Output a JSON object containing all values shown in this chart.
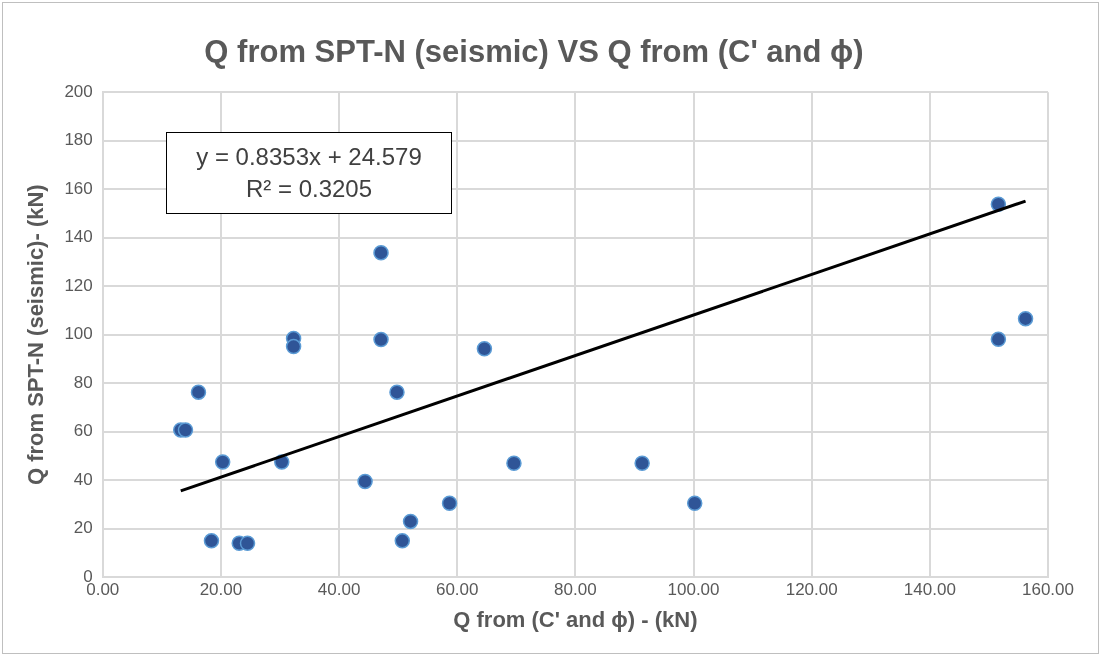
{
  "chart_data": {
    "type": "scatter",
    "title": "Q from SPT-N (seismic) VS Q from (C' and ϕ)",
    "xlabel": "Q from (C' and ϕ) - (kN)",
    "ylabel": "Q from SPT-N (seismic)- (kN)",
    "annotations": [
      "y = 0.8353x + 24.579",
      "R² = 0.3205"
    ],
    "series": [
      {
        "type": "scatter",
        "marker": "circle",
        "color": "#2f5597",
        "x": [
          13.2,
          14.0,
          16.2,
          20.3,
          18.4,
          23.1,
          24.5,
          30.3,
          32.3,
          32.3,
          47.1,
          47.1,
          49.8,
          44.4,
          50.7,
          52.1,
          58.7,
          64.6,
          69.6,
          91.3,
          100.2,
          151.6,
          151.6,
          156.2
        ],
        "values": [
          60.7,
          60.7,
          76.3,
          47.5,
          15.0,
          14.0,
          14.0,
          47.5,
          98.4,
          95.1,
          98.0,
          133.8,
          76.3,
          39.5,
          15.0,
          23.0,
          30.5,
          94.2,
          47.0,
          47.0,
          30.5,
          153.8,
          98.1,
          106.6
        ]
      },
      {
        "type": "line",
        "marker": "none",
        "color": "#000000",
        "x": [
          13.2,
          156.2
        ],
        "values": [
          35.6,
          155.1
        ]
      }
    ],
    "xlim": [
      0,
      160
    ],
    "xticks": [
      {
        "value": 0,
        "label": "0.00"
      },
      {
        "value": 20,
        "label": "20.00"
      },
      {
        "value": 40,
        "label": "40.00"
      },
      {
        "value": 60,
        "label": "60.00"
      },
      {
        "value": 80,
        "label": "80.00"
      },
      {
        "value": 100,
        "label": "100.00"
      },
      {
        "value": 120,
        "label": "120.00"
      },
      {
        "value": 140,
        "label": "140.00"
      },
      {
        "value": 160,
        "label": "160.00"
      }
    ],
    "ylim": [
      0,
      200
    ],
    "yticks": [
      0,
      20,
      40,
      60,
      80,
      100,
      120,
      140,
      160,
      180,
      200
    ],
    "grid": true,
    "legend": false
  }
}
